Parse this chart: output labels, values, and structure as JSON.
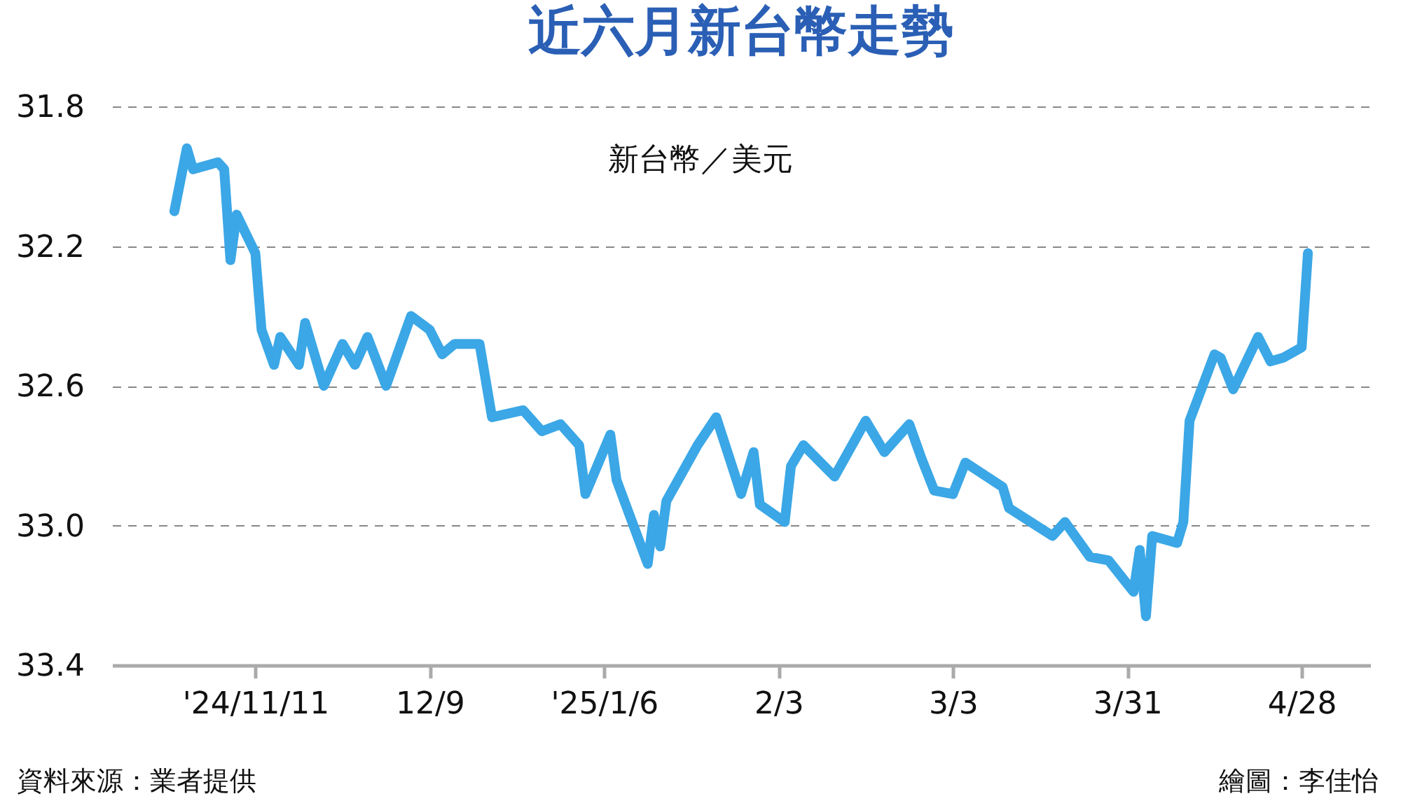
{
  "chart_data": {
    "type": "line",
    "title": "近六月新台幣走勢",
    "ylabel": "新台幣／美元",
    "x": [
      "2024-10-29",
      "2024-10-31",
      "2024-11-01",
      "2024-11-05",
      "2024-11-06",
      "2024-11-07",
      "2024-11-08",
      "2024-11-11",
      "2024-11-12",
      "2024-11-14",
      "2024-11-15",
      "2024-11-18",
      "2024-11-19",
      "2024-11-22",
      "2024-11-25",
      "2024-11-27",
      "2024-11-29",
      "2024-12-02",
      "2024-12-06",
      "2024-12-09",
      "2024-12-11",
      "2024-12-13",
      "2024-12-17",
      "2024-12-19",
      "2024-12-24",
      "2024-12-27",
      "2024-12-30",
      "2025-01-02",
      "2025-01-03",
      "2025-01-07",
      "2025-01-08",
      "2025-01-13",
      "2025-01-14",
      "2025-01-15",
      "2025-01-16",
      "2025-01-21",
      "2025-01-24",
      "2025-01-28",
      "2025-01-30",
      "2025-01-31",
      "2025-02-04",
      "2025-02-05",
      "2025-02-07",
      "2025-02-12",
      "2025-02-17",
      "2025-02-20",
      "2025-02-24",
      "2025-02-26",
      "2025-02-28",
      "2025-03-03",
      "2025-03-05",
      "2025-03-11",
      "2025-03-12",
      "2025-03-19",
      "2025-03-21",
      "2025-03-25",
      "2025-03-28",
      "2025-04-01",
      "2025-04-02",
      "2025-04-03",
      "2025-04-04",
      "2025-04-08",
      "2025-04-09",
      "2025-04-10",
      "2025-04-14",
      "2025-04-15",
      "2025-04-17",
      "2025-04-21",
      "2025-04-23",
      "2025-04-25",
      "2025-04-28",
      "2025-04-29"
    ],
    "series": [
      {
        "color": "#3ba7e6",
        "values": [
          32.1,
          31.92,
          31.98,
          31.96,
          31.98,
          32.24,
          32.11,
          32.22,
          32.44,
          32.54,
          32.46,
          32.54,
          32.42,
          32.6,
          32.48,
          32.54,
          32.46,
          32.6,
          32.4,
          32.44,
          32.51,
          32.48,
          32.48,
          32.69,
          32.67,
          32.73,
          32.71,
          32.77,
          32.91,
          32.74,
          32.87,
          33.11,
          32.97,
          33.06,
          32.93,
          32.77,
          32.69,
          32.91,
          32.79,
          32.94,
          32.99,
          32.83,
          32.77,
          32.86,
          32.7,
          32.79,
          32.71,
          32.81,
          32.9,
          32.91,
          32.82,
          32.89,
          32.95,
          33.03,
          32.99,
          33.09,
          33.1,
          33.19,
          33.07,
          33.26,
          33.03,
          33.05,
          32.99,
          32.7,
          32.51,
          32.52,
          32.61,
          32.46,
          32.53,
          32.52,
          32.49,
          32.22
        ]
      }
    ],
    "xlim": [
      "2024-10-19",
      "2025-05-09"
    ],
    "xticks": [
      {
        "value": "2024-11-11",
        "label": "'24/11/11"
      },
      {
        "value": "2024-12-09",
        "label": "12/9"
      },
      {
        "value": "2025-01-06",
        "label": "'25/1/6"
      },
      {
        "value": "2025-02-03",
        "label": "2/3"
      },
      {
        "value": "2025-03-03",
        "label": "3/3"
      },
      {
        "value": "2025-03-31",
        "label": "3/31"
      },
      {
        "value": "2025-04-28",
        "label": "4/28"
      }
    ],
    "ylim": [
      33.4,
      31.8
    ],
    "yticks": [
      31.8,
      32.2,
      32.6,
      {
        "value": 33,
        "label": "33.0"
      },
      33.4
    ],
    "grid": "y",
    "marker": "none",
    "line_style": "solid",
    "annotations": [
      "資料來源：業者提供",
      "繪圖：李佳怡"
    ]
  }
}
